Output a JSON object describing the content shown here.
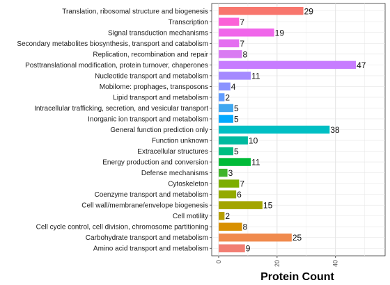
{
  "chart_data": {
    "type": "bar",
    "orientation": "horizontal",
    "xlabel": "Protein Count",
    "ylabel": "",
    "xlim": [
      0,
      57
    ],
    "xticks": [
      0,
      20,
      40
    ],
    "grid": true,
    "legend": "none",
    "categories": [
      "Translation, ribosomal structure and biogenesis",
      "Transcription",
      "Signal transduction mechanisms",
      "Secondary metabolites biosynthesis, transport and catabolism",
      "Replication, recombination and repair",
      "Posttranslational modification, protein turnover, chaperones",
      "Nucleotide transport and metabolism",
      "Mobilome: prophages, transposons",
      "Lipid transport and metabolism",
      "Intracellular trafficking, secretion, and vesicular transport",
      "Inorganic ion transport and metabolism",
      "General function prediction only",
      "Function unknown",
      "Extracellular structures",
      "Energy production and conversion",
      "Defense mechanisms",
      "Cytoskeleton",
      "Coenzyme transport and metabolism",
      "Cell wall/membrane/envelope biogenesis",
      "Cell motility",
      "Cell cycle control, cell division, chromosome partitioning",
      "Carbohydrate transport and metabolism",
      "Amino acid transport and metabolism"
    ],
    "values": [
      29,
      7,
      19,
      7,
      8,
      47,
      11,
      4,
      2,
      5,
      5,
      38,
      10,
      5,
      11,
      3,
      7,
      6,
      15,
      2,
      8,
      25,
      9
    ],
    "colors": [
      "#F8766D",
      "#FB61D7",
      "#F066EA",
      "#E46EF0",
      "#D97BF2",
      "#C77CFF",
      "#A58AFF",
      "#8B93FF",
      "#619CFF",
      "#3FA7F0",
      "#00A9FF",
      "#00BFC4",
      "#00BA9F",
      "#00BE82",
      "#00BA38",
      "#3FB42C",
      "#7CAE00",
      "#93AA00",
      "#A3A500",
      "#B79F00",
      "#D89000",
      "#F08A4D",
      "#F27E73"
    ]
  }
}
